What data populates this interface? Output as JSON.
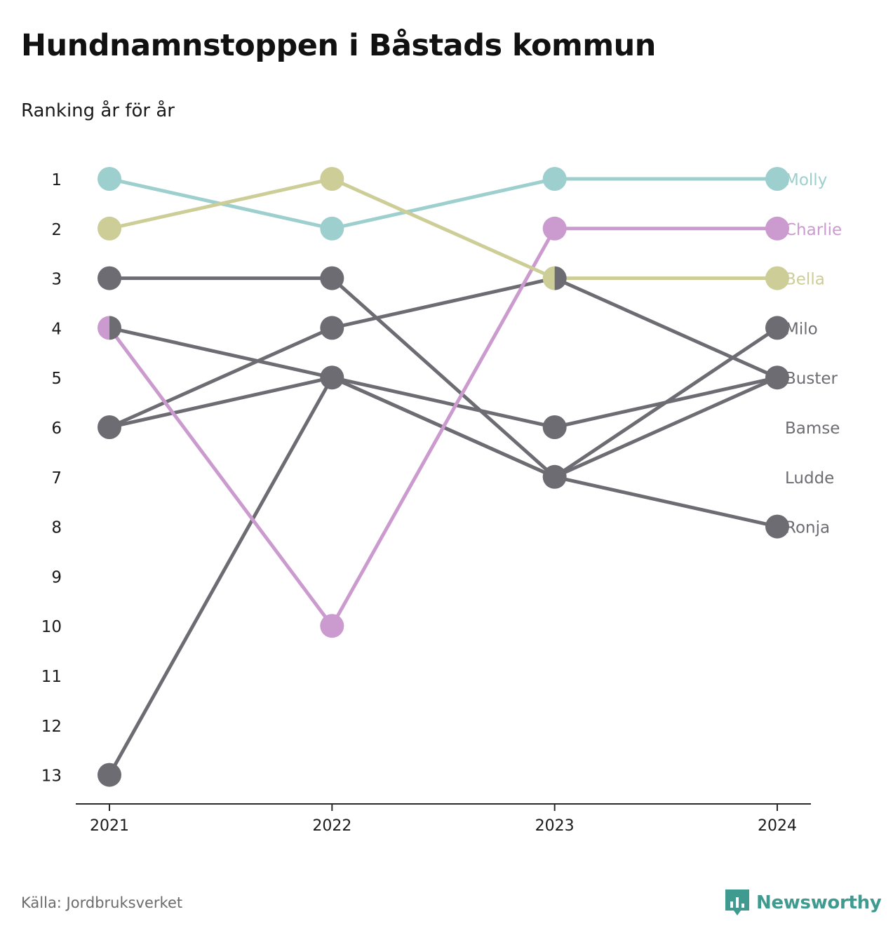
{
  "title": "Hundnamnstoppen i Båstads kommun",
  "subtitle": "Ranking år för år",
  "source": "Källa: Jordbruksverket",
  "brand": "Newsworthy",
  "colors": {
    "Molly": "#9ccfcd",
    "Charlie": "#cb9ace",
    "Bella": "#cdcd98",
    "default": "#6d6c73",
    "axis": "#2a2a2a",
    "brand": "#3f9a8f"
  },
  "chart_data": {
    "type": "line",
    "title": "Hundnamnstoppen i Båstads kommun",
    "subtitle": "Ranking år för år",
    "x": [
      "2021",
      "2022",
      "2023",
      "2024"
    ],
    "y_ticks": [
      1,
      2,
      3,
      4,
      5,
      6,
      7,
      8,
      9,
      10,
      11,
      12,
      13
    ],
    "ylim": [
      13,
      1
    ],
    "y_reversed": true,
    "grid": false,
    "series": [
      {
        "name": "Molly",
        "values": [
          1,
          2,
          1,
          1
        ]
      },
      {
        "name": "Charlie",
        "values": [
          4,
          10,
          2,
          2
        ]
      },
      {
        "name": "Bella",
        "values": [
          2,
          1,
          3,
          3
        ]
      },
      {
        "name": "Milo",
        "values": [
          13,
          5,
          7,
          4
        ]
      },
      {
        "name": "Buster",
        "values": [
          3,
          3,
          7,
          5
        ]
      },
      {
        "name": "Bamse",
        "values": [
          6,
          5,
          6,
          5
        ]
      },
      {
        "name": "Ludde",
        "values": [
          6,
          4,
          3,
          5
        ]
      },
      {
        "name": "Ronja",
        "values": [
          4,
          5,
          7,
          8
        ]
      }
    ],
    "end_labels": [
      "Molly",
      "Charlie",
      "Bella",
      "Milo",
      "Buster",
      "Bamse",
      "Ludde",
      "Ronja"
    ]
  }
}
